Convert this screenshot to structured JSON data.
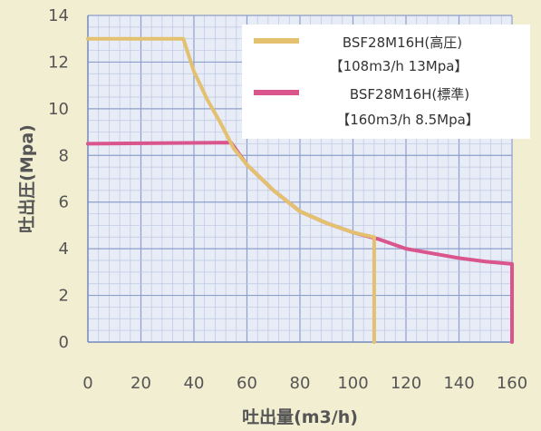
{
  "chart_data": {
    "type": "line",
    "title": "",
    "xlabel": "吐出量(m3/h)",
    "ylabel": "吐出圧(Mpa)",
    "xlim": [
      0,
      160
    ],
    "ylim": [
      0,
      14
    ],
    "x_ticks": [
      0,
      20,
      40,
      60,
      80,
      100,
      120,
      140,
      160
    ],
    "y_ticks": [
      0,
      2,
      4,
      6,
      8,
      10,
      12,
      14
    ],
    "x_tick_labels": [
      "0",
      "20",
      "40",
      "60",
      "80",
      "100",
      "120",
      "140",
      "160"
    ],
    "y_tick_labels": [
      "0",
      "2",
      "4",
      "6",
      "8",
      "10",
      "12",
      "14"
    ],
    "grid": true,
    "legend_position": "top-right",
    "series": [
      {
        "name": "BSF28M16H(高圧)",
        "legend_sub": "【108m3/h  13Mpa】",
        "color": "#e3c16e",
        "x": [
          0,
          36,
          40,
          45,
          50,
          55,
          60,
          70,
          80,
          90,
          100,
          108,
          108
        ],
        "y": [
          13,
          13,
          11.6,
          10.4,
          9.4,
          8.3,
          7.6,
          6.5,
          5.6,
          5.1,
          4.7,
          4.5,
          0
        ]
      },
      {
        "name": "BSF28M16H(標準)",
        "legend_sub": "【160m3/h  8.5Mpa】",
        "color": "#d9558c",
        "x": [
          0,
          54,
          60,
          70,
          80,
          90,
          100,
          110,
          120,
          130,
          140,
          150,
          160,
          160
        ],
        "y": [
          8.5,
          8.55,
          7.6,
          6.5,
          5.6,
          5.1,
          4.7,
          4.4,
          4.0,
          3.8,
          3.6,
          3.45,
          3.35,
          0
        ]
      }
    ]
  }
}
